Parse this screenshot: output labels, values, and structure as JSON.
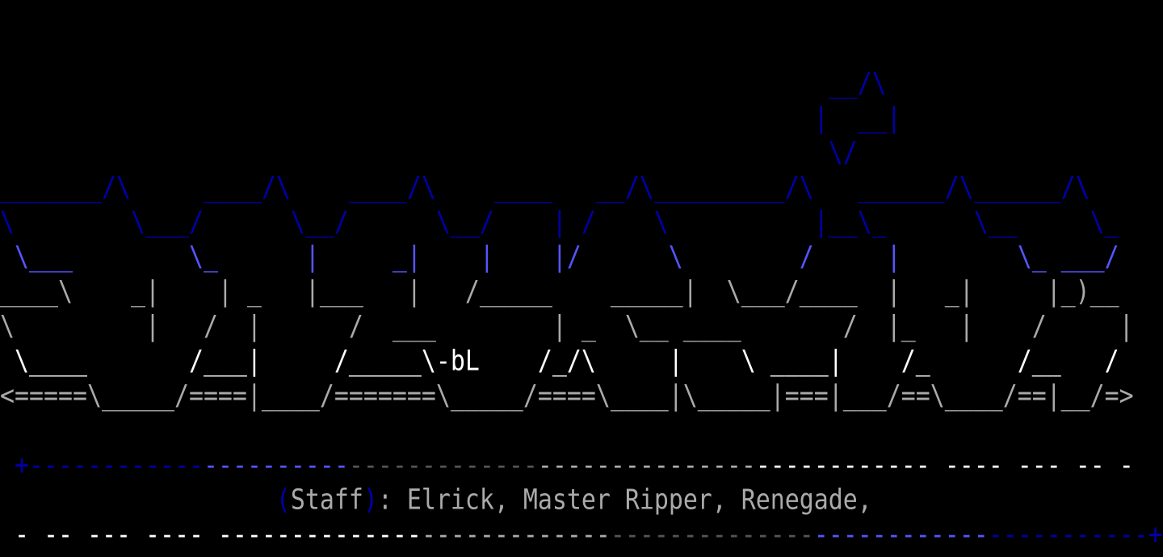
{
  "palette": {
    "dark_blue": "#0000aa",
    "bright_blue": "#5555ff",
    "dark_gray": "#555555",
    "light_gray": "#aaaaaa",
    "white": "#ffffff",
    "background": "#000000"
  },
  "art": {
    "rows": [
      "                                                         __/\\",
      "                                                        |  __|",
      "                                                         \\/",
      "_______/\\     ____/\\    ____/\\    ____   __/\\_________/\\   ______/\\______/\\",
      "\\        \\___/      \\__/      \\__/    | /    \\          |__\\_      \\__     \\_",
      " \\___        \\_      |     _|    |    |/      \\        /     |        \\_ ___/",
      "____\\    _|    | _   |___   |   /_____    _____|  \\___/____  |   _|     |_)__",
      "\\         |   /  |      /  ___        | _  \\__ ____       /  |_   |    /     |",
      " \\____       /___|     /_____\\-bL    /_/\\     |    \\ ____|    /_      /__   /",
      "<=====\\_____/====|____/=======\\_____/====\\____|\\_____|===|___/==\\____/==|__/=>"
    ],
    "row_colors": [
      "dark_blue",
      "dark_blue",
      "dark_blue",
      "dark_blue",
      "dark_blue",
      "bright_blue",
      "light_gray",
      "light_gray",
      "white",
      "light_gray"
    ]
  },
  "top_rule": [
    {
      "text": " +------------",
      "color": "dark_blue"
    },
    {
      "text": "----------",
      "color": "bright_blue"
    },
    {
      "text": "-------------",
      "color": "dark_gray"
    },
    {
      "text": "---------------",
      "color": "light_gray"
    },
    {
      "text": "------------ ---- --- -- -",
      "color": "white"
    }
  ],
  "staff": {
    "open_paren": "(",
    "label": "Staff",
    "close_paren": ")",
    "names": ": Elrick, Master Ripper, Renegade,"
  },
  "bottom_rule": [
    {
      "text": " - -- --- ---- --------------",
      "color": "white"
    },
    {
      "text": "-------------",
      "color": "light_gray"
    },
    {
      "text": "--------------",
      "color": "dark_gray"
    },
    {
      "text": "------------",
      "color": "bright_blue"
    },
    {
      "text": "-----------+",
      "color": "dark_blue"
    }
  ]
}
